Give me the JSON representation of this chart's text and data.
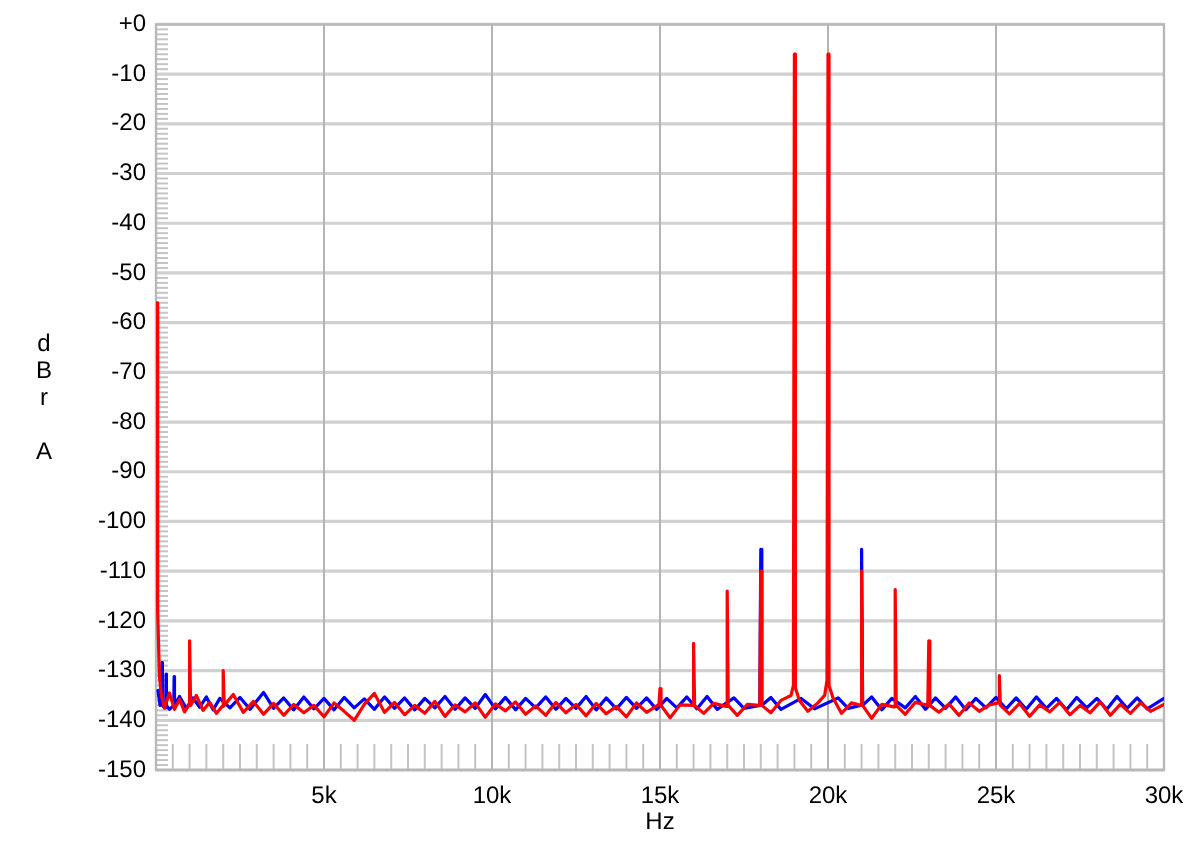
{
  "chart_data": {
    "type": "line",
    "xlabel": "Hz",
    "ylabel": "dBr A",
    "xlim": [
      0,
      30000
    ],
    "ylim": [
      -150,
      0
    ],
    "xticks": [
      {
        "value": 500,
        "label": null
      },
      {
        "value": 1000,
        "label": null
      },
      {
        "value": 1500,
        "label": null
      },
      {
        "value": 2000,
        "label": null
      },
      {
        "value": 2500,
        "label": null
      },
      {
        "value": 3000,
        "label": null
      },
      {
        "value": 3500,
        "label": null
      },
      {
        "value": 4000,
        "label": null
      },
      {
        "value": 4500,
        "label": null
      },
      {
        "value": 5000,
        "label": "5k"
      },
      {
        "value": 5500,
        "label": null
      },
      {
        "value": 6000,
        "label": null
      },
      {
        "value": 6500,
        "label": null
      },
      {
        "value": 7000,
        "label": null
      },
      {
        "value": 7500,
        "label": null
      },
      {
        "value": 8000,
        "label": null
      },
      {
        "value": 8500,
        "label": null
      },
      {
        "value": 9000,
        "label": null
      },
      {
        "value": 9500,
        "label": null
      },
      {
        "value": 10000,
        "label": "10k"
      },
      {
        "value": 10500,
        "label": null
      },
      {
        "value": 11000,
        "label": null
      },
      {
        "value": 11500,
        "label": null
      },
      {
        "value": 12000,
        "label": null
      },
      {
        "value": 12500,
        "label": null
      },
      {
        "value": 13000,
        "label": null
      },
      {
        "value": 13500,
        "label": null
      },
      {
        "value": 14000,
        "label": null
      },
      {
        "value": 14500,
        "label": null
      },
      {
        "value": 15000,
        "label": "15k"
      },
      {
        "value": 15500,
        "label": null
      },
      {
        "value": 16000,
        "label": null
      },
      {
        "value": 16500,
        "label": null
      },
      {
        "value": 17000,
        "label": null
      },
      {
        "value": 17500,
        "label": null
      },
      {
        "value": 18000,
        "label": null
      },
      {
        "value": 18500,
        "label": null
      },
      {
        "value": 19000,
        "label": null
      },
      {
        "value": 19500,
        "label": null
      },
      {
        "value": 20000,
        "label": "20k"
      },
      {
        "value": 20500,
        "label": null
      },
      {
        "value": 21000,
        "label": null
      },
      {
        "value": 21500,
        "label": null
      },
      {
        "value": 22000,
        "label": null
      },
      {
        "value": 22500,
        "label": null
      },
      {
        "value": 23000,
        "label": null
      },
      {
        "value": 23500,
        "label": null
      },
      {
        "value": 24000,
        "label": null
      },
      {
        "value": 24500,
        "label": null
      },
      {
        "value": 25000,
        "label": "25k"
      },
      {
        "value": 25500,
        "label": null
      },
      {
        "value": 26000,
        "label": null
      },
      {
        "value": 26500,
        "label": null
      },
      {
        "value": 27000,
        "label": null
      },
      {
        "value": 27500,
        "label": null
      },
      {
        "value": 28000,
        "label": null
      },
      {
        "value": 28500,
        "label": null
      },
      {
        "value": 29000,
        "label": null
      },
      {
        "value": 29500,
        "label": null
      },
      {
        "value": 30000,
        "label": "30k"
      }
    ],
    "yticks": [
      {
        "value": 0,
        "label": "+0"
      },
      {
        "value": -1,
        "label": null
      },
      {
        "value": -2,
        "label": null
      },
      {
        "value": -3,
        "label": null
      },
      {
        "value": -4,
        "label": null
      },
      {
        "value": -5,
        "label": null
      },
      {
        "value": -6,
        "label": null
      },
      {
        "value": -7,
        "label": null
      },
      {
        "value": -8,
        "label": null
      },
      {
        "value": -9,
        "label": null
      },
      -10,
      {
        "value": -11,
        "label": null
      },
      {
        "value": -12,
        "label": null
      },
      {
        "value": -13,
        "label": null
      },
      {
        "value": -14,
        "label": null
      },
      {
        "value": -15,
        "label": null
      },
      {
        "value": -16,
        "label": null
      },
      {
        "value": -17,
        "label": null
      },
      {
        "value": -18,
        "label": null
      },
      {
        "value": -19,
        "label": null
      },
      -20,
      {
        "value": -21,
        "label": null
      },
      {
        "value": -22,
        "label": null
      },
      {
        "value": -23,
        "label": null
      },
      {
        "value": -24,
        "label": null
      },
      {
        "value": -25,
        "label": null
      },
      {
        "value": -26,
        "label": null
      },
      {
        "value": -27,
        "label": null
      },
      {
        "value": -28,
        "label": null
      },
      {
        "value": -29,
        "label": null
      },
      -30,
      {
        "value": -31,
        "label": null
      },
      {
        "value": -32,
        "label": null
      },
      {
        "value": -33,
        "label": null
      },
      {
        "value": -34,
        "label": null
      },
      {
        "value": -35,
        "label": null
      },
      {
        "value": -36,
        "label": null
      },
      {
        "value": -37,
        "label": null
      },
      {
        "value": -38,
        "label": null
      },
      {
        "value": -39,
        "label": null
      },
      -40,
      {
        "value": -41,
        "label": null
      },
      {
        "value": -42,
        "label": null
      },
      {
        "value": -43,
        "label": null
      },
      {
        "value": -44,
        "label": null
      },
      {
        "value": -45,
        "label": null
      },
      {
        "value": -46,
        "label": null
      },
      {
        "value": -47,
        "label": null
      },
      {
        "value": -48,
        "label": null
      },
      {
        "value": -49,
        "label": null
      },
      -50,
      {
        "value": -51,
        "label": null
      },
      {
        "value": -52,
        "label": null
      },
      {
        "value": -53,
        "label": null
      },
      {
        "value": -54,
        "label": null
      },
      {
        "value": -55,
        "label": null
      },
      {
        "value": -56,
        "label": null
      },
      {
        "value": -57,
        "label": null
      },
      {
        "value": -58,
        "label": null
      },
      {
        "value": -59,
        "label": null
      },
      -60,
      {
        "value": -61,
        "label": null
      },
      {
        "value": -62,
        "label": null
      },
      {
        "value": -63,
        "label": null
      },
      {
        "value": -64,
        "label": null
      },
      {
        "value": -65,
        "label": null
      },
      {
        "value": -66,
        "label": null
      },
      {
        "value": -67,
        "label": null
      },
      {
        "value": -68,
        "label": null
      },
      {
        "value": -69,
        "label": null
      },
      -70,
      {
        "value": -71,
        "label": null
      },
      {
        "value": -72,
        "label": null
      },
      {
        "value": -73,
        "label": null
      },
      {
        "value": -74,
        "label": null
      },
      {
        "value": -75,
        "label": null
      },
      {
        "value": -76,
        "label": null
      },
      {
        "value": -77,
        "label": null
      },
      {
        "value": -78,
        "label": null
      },
      {
        "value": -79,
        "label": null
      },
      -80,
      {
        "value": -81,
        "label": null
      },
      {
        "value": -82,
        "label": null
      },
      {
        "value": -83,
        "label": null
      },
      {
        "value": -84,
        "label": null
      },
      {
        "value": -85,
        "label": null
      },
      {
        "value": -86,
        "label": null
      },
      {
        "value": -87,
        "label": null
      },
      {
        "value": -88,
        "label": null
      },
      {
        "value": -89,
        "label": null
      },
      -90,
      {
        "value": -91,
        "label": null
      },
      {
        "value": -92,
        "label": null
      },
      {
        "value": -93,
        "label": null
      },
      {
        "value": -94,
        "label": null
      },
      {
        "value": -95,
        "label": null
      },
      {
        "value": -96,
        "label": null
      },
      {
        "value": -97,
        "label": null
      },
      {
        "value": -98,
        "label": null
      },
      {
        "value": -99,
        "label": null
      },
      -100,
      {
        "value": -101,
        "label": null
      },
      {
        "value": -102,
        "label": null
      },
      {
        "value": -103,
        "label": null
      },
      {
        "value": -104,
        "label": null
      },
      {
        "value": -105,
        "label": null
      },
      {
        "value": -106,
        "label": null
      },
      {
        "value": -107,
        "label": null
      },
      {
        "value": -108,
        "label": null
      },
      {
        "value": -109,
        "label": null
      },
      -110,
      {
        "value": -111,
        "label": null
      },
      {
        "value": -112,
        "label": null
      },
      {
        "value": -113,
        "label": null
      },
      {
        "value": -114,
        "label": null
      },
      {
        "value": -115,
        "label": null
      },
      {
        "value": -116,
        "label": null
      },
      {
        "value": -117,
        "label": null
      },
      {
        "value": -118,
        "label": null
      },
      {
        "value": -119,
        "label": null
      },
      -120,
      {
        "value": -121,
        "label": null
      },
      {
        "value": -122,
        "label": null
      },
      {
        "value": -123,
        "label": null
      },
      {
        "value": -124,
        "label": null
      },
      {
        "value": -125,
        "label": null
      },
      {
        "value": -126,
        "label": null
      },
      {
        "value": -127,
        "label": null
      },
      {
        "value": -128,
        "label": null
      },
      {
        "value": -129,
        "label": null
      },
      -130,
      {
        "value": -131,
        "label": null
      },
      {
        "value": -132,
        "label": null
      },
      {
        "value": -133,
        "label": null
      },
      {
        "value": -134,
        "label": null
      },
      {
        "value": -135,
        "label": null
      },
      {
        "value": -136,
        "label": null
      },
      {
        "value": -137,
        "label": null
      },
      {
        "value": -138,
        "label": null
      },
      {
        "value": -139,
        "label": null
      },
      -140,
      {
        "value": -141,
        "label": null
      },
      {
        "value": -142,
        "label": null
      },
      {
        "value": -143,
        "label": null
      },
      {
        "value": -144,
        "label": null
      },
      {
        "value": -145,
        "label": null
      },
      {
        "value": -146,
        "label": null
      },
      {
        "value": -147,
        "label": null
      },
      {
        "value": -148,
        "label": null
      },
      {
        "value": -149,
        "label": null
      },
      -150
    ],
    "grid": true,
    "series": [
      {
        "color": "#0000ff",
        "x": [
          60,
          120,
          170,
          180,
          190,
          250,
          290,
          300,
          310,
          400,
          530,
          540,
          550,
          700,
          900,
          1100,
          1300,
          1500,
          1700,
          1900,
          2200,
          2500,
          2800,
          3200,
          3500,
          3800,
          4100,
          4400,
          4700,
          5000,
          5300,
          5600,
          5900,
          6200,
          6500,
          6800,
          7100,
          7400,
          7700,
          8000,
          8300,
          8600,
          8900,
          9200,
          9500,
          9800,
          10100,
          10400,
          10700,
          11000,
          11300,
          11600,
          11900,
          12200,
          12500,
          12800,
          13100,
          13400,
          13700,
          14000,
          14300,
          14600,
          14900,
          15200,
          15500,
          15800,
          16100,
          16400,
          16700,
          17200,
          17500,
          17970,
          18000,
          18030,
          18300,
          18600,
          19200,
          19600,
          20300,
          20600,
          20970,
          21000,
          21030,
          21300,
          21600,
          21900,
          22300,
          22600,
          22900,
          23200,
          23500,
          23800,
          24100,
          24400,
          24700,
          25000,
          25300,
          25600,
          25900,
          26200,
          26500,
          26800,
          27100,
          27400,
          27700,
          28000,
          28300,
          28600,
          28900,
          29200,
          29500,
          30000
        ],
        "values": [
          -134,
          -137,
          -137,
          -128.4,
          -137,
          -137.5,
          -137,
          -130.7,
          -137,
          -137.8,
          -137,
          -131.2,
          -137,
          -135.2,
          -137.6,
          -135.5,
          -137.4,
          -135.3,
          -137.9,
          -135.6,
          -137.5,
          -135.4,
          -137.8,
          -134.4,
          -137.6,
          -135.5,
          -137.9,
          -135.3,
          -137.7,
          -135.6,
          -137.9,
          -135.4,
          -137.5,
          -135.7,
          -137.8,
          -135.3,
          -137.6,
          -135.5,
          -137.9,
          -135.6,
          -137.5,
          -135.2,
          -137.8,
          -135.5,
          -137.6,
          -134.8,
          -137.7,
          -135.4,
          -137.9,
          -135.6,
          -137.5,
          -135.3,
          -137.8,
          -135.6,
          -137.6,
          -135.2,
          -137.9,
          -135.5,
          -137.7,
          -135.4,
          -137.6,
          -135.5,
          -137.8,
          -135.6,
          -137.5,
          -135.3,
          -137.7,
          -135.2,
          -137.8,
          -135.5,
          -137.6,
          -137,
          -105.6,
          -137,
          -135.4,
          -137.8,
          -135.6,
          -137.7,
          -135.5,
          -137.6,
          -137,
          -105.6,
          -137,
          -135.3,
          -137.9,
          -135.6,
          -137.5,
          -135.2,
          -137.8,
          -135.5,
          -137.6,
          -135.3,
          -137.9,
          -135.6,
          -137.5,
          -135.4,
          -137.7,
          -135.5,
          -137.8,
          -135.3,
          -137.6,
          -135.6,
          -137.9,
          -135.4,
          -137.5,
          -135.6,
          -137.8,
          -135.2,
          -137.6,
          -135.5,
          -137.7,
          -135.6
        ]
      },
      {
        "color": "#ff0000",
        "x": [
          0,
          50,
          100,
          160,
          250,
          400,
          550,
          700,
          850,
          970,
          1000,
          1030,
          1200,
          1400,
          1600,
          1800,
          1970,
          2000,
          2030,
          2300,
          2600,
          2900,
          3200,
          3500,
          3800,
          4100,
          4400,
          4700,
          5000,
          5300,
          5600,
          5900,
          6200,
          6500,
          6800,
          7100,
          7400,
          7700,
          8000,
          8300,
          8600,
          8900,
          9200,
          9500,
          9800,
          10100,
          10400,
          10700,
          11000,
          11300,
          11600,
          11900,
          12200,
          12500,
          12800,
          13100,
          13400,
          13700,
          14000,
          14300,
          14600,
          14970,
          15000,
          15030,
          15300,
          15600,
          15970,
          16000,
          16030,
          16300,
          16600,
          16970,
          17000,
          17030,
          17300,
          17600,
          17970,
          18000,
          18030,
          18300,
          18600,
          18900,
          18970,
          19000,
          19030,
          19150,
          19400,
          19700,
          19900,
          19970,
          20000,
          20030,
          20150,
          20400,
          20700,
          20970,
          21000,
          21030,
          21300,
          21600,
          21970,
          22000,
          22030,
          22300,
          22600,
          22970,
          23000,
          23030,
          23300,
          23600,
          23900,
          24200,
          24500,
          24800,
          25070,
          25100,
          25130,
          25400,
          25700,
          26000,
          26300,
          26600,
          26900,
          27200,
          27500,
          27800,
          28100,
          28400,
          28700,
          29000,
          29300,
          29600,
          30000
        ],
        "values": [
          -56,
          -118,
          -131,
          -135,
          -137.5,
          -134.5,
          -137.8,
          -135.8,
          -138.3,
          -137,
          -124,
          -137,
          -135,
          -138,
          -136.4,
          -138.6,
          -137.2,
          -130,
          -137,
          -134.8,
          -138.4,
          -136.2,
          -138.8,
          -136.6,
          -139,
          -136.8,
          -138.5,
          -137,
          -139.3,
          -136.5,
          -138.2,
          -140,
          -136.8,
          -134.6,
          -138.4,
          -136.4,
          -138.9,
          -137,
          -138.6,
          -136.2,
          -139.2,
          -136.9,
          -138.3,
          -136.5,
          -139.4,
          -136.7,
          -138.1,
          -136.3,
          -138.8,
          -137.1,
          -139,
          -136.4,
          -138.5,
          -136.8,
          -139.1,
          -136.6,
          -138.7,
          -137.2,
          -139.3,
          -136.5,
          -138.4,
          -136.8,
          -133.6,
          -137,
          -139.5,
          -136.9,
          -137,
          -124.5,
          -137,
          -138.6,
          -136.6,
          -137.2,
          -114,
          -137,
          -139,
          -136.8,
          -137,
          -110,
          -137,
          -138.5,
          -136,
          -135,
          -133,
          -6,
          -133.5,
          -136,
          -138.2,
          -136.5,
          -135,
          -132,
          -6,
          -133,
          -135.5,
          -138.6,
          -136.5,
          -137,
          -110,
          -137,
          -139.6,
          -136.8,
          -137.3,
          -113.7,
          -137,
          -138.8,
          -136.4,
          -137,
          -124,
          -137,
          -138.4,
          -136.7,
          -139,
          -136.5,
          -138.2,
          -136.9,
          -136.5,
          -131,
          -137,
          -138.7,
          -136.6,
          -139.2,
          -136.9,
          -138.3,
          -136.4,
          -138.9,
          -137,
          -138.5,
          -136.3,
          -139,
          -136.8,
          -138.6,
          -136.5,
          -138.2,
          -136.8
        ]
      }
    ]
  }
}
